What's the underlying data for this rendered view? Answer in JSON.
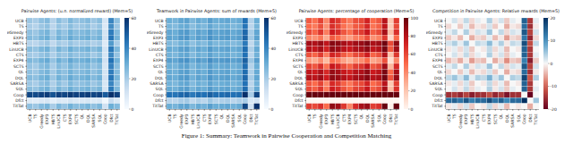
{
  "chart_data": [
    {
      "type": "heatmap",
      "title": "Pairwise Agents: (u.n. normalized reward) (Mem=5)",
      "color": "Blues",
      "x": [
        "UCB",
        "TS",
        "eGreedy",
        "EXP3",
        "HBTS",
        "LinUCB",
        "CTS",
        "EXP4",
        "SCTS",
        "QL",
        "DQL",
        "SARSA",
        "SQL",
        "Coop",
        "Dfct",
        "TitTat"
      ],
      "y": [
        "UCB",
        "TS",
        "eGreedy",
        "EXP3",
        "HBTS",
        "LinUCB",
        "CTS",
        "EXP4",
        "SCTS",
        "QL",
        "DQL",
        "SARSA",
        "SQL",
        "Coop",
        "Dfct",
        "TitTat"
      ],
      "cells": [
        [
          22,
          20,
          24,
          26,
          18,
          25,
          21,
          27,
          23,
          24,
          26,
          22,
          25,
          10,
          40,
          24
        ],
        [
          20,
          18,
          22,
          24,
          17,
          23,
          20,
          25,
          21,
          22,
          24,
          20,
          23,
          9,
          38,
          22
        ],
        [
          24,
          22,
          26,
          28,
          20,
          27,
          23,
          29,
          25,
          26,
          28,
          24,
          27,
          11,
          42,
          26
        ],
        [
          26,
          24,
          28,
          30,
          22,
          29,
          25,
          31,
          27,
          28,
          30,
          26,
          29,
          12,
          44,
          28
        ],
        [
          18,
          17,
          20,
          22,
          16,
          21,
          19,
          23,
          20,
          21,
          22,
          19,
          21,
          8,
          35,
          20
        ],
        [
          25,
          23,
          27,
          29,
          21,
          28,
          24,
          30,
          26,
          27,
          29,
          25,
          28,
          11,
          43,
          27
        ],
        [
          21,
          20,
          23,
          25,
          19,
          24,
          22,
          26,
          23,
          24,
          25,
          21,
          24,
          10,
          39,
          23
        ],
        [
          27,
          25,
          29,
          31,
          23,
          30,
          26,
          32,
          28,
          29,
          31,
          27,
          30,
          12,
          45,
          29
        ],
        [
          23,
          21,
          25,
          27,
          20,
          26,
          23,
          28,
          24,
          25,
          27,
          23,
          26,
          10,
          41,
          25
        ],
        [
          24,
          22,
          26,
          28,
          21,
          27,
          24,
          29,
          25,
          26,
          28,
          24,
          27,
          11,
          42,
          26
        ],
        [
          26,
          24,
          28,
          30,
          22,
          29,
          25,
          31,
          27,
          28,
          30,
          26,
          29,
          12,
          44,
          28
        ],
        [
          22,
          20,
          24,
          26,
          19,
          25,
          21,
          27,
          23,
          24,
          26,
          22,
          25,
          10,
          40,
          24
        ],
        [
          25,
          23,
          27,
          29,
          21,
          28,
          24,
          30,
          26,
          27,
          29,
          25,
          28,
          11,
          43,
          27
        ],
        [
          55,
          54,
          56,
          57,
          52,
          56,
          55,
          58,
          56,
          56,
          57,
          55,
          56,
          50,
          60,
          56
        ],
        [
          8,
          7,
          9,
          10,
          6,
          9,
          8,
          11,
          9,
          9,
          10,
          8,
          9,
          2,
          15,
          9
        ],
        [
          24,
          22,
          26,
          28,
          20,
          27,
          23,
          29,
          25,
          26,
          28,
          24,
          27,
          12,
          30,
          26
        ]
      ],
      "colorbar": {
        "range": [
          0,
          60
        ],
        "ticks": [
          0,
          20,
          40,
          60
        ]
      }
    },
    {
      "type": "heatmap",
      "title": "Teamwork in Pairwise Agents: sum of rewards (Mem=5)",
      "color": "Blues",
      "x": [
        "UCB",
        "TS",
        "eGreedy",
        "EXP3",
        "HBTS",
        "LinUCB",
        "CTS",
        "EXP4",
        "SCTS",
        "QL",
        "DQL",
        "SARSA",
        "SQL",
        "Coop",
        "Dfct",
        "TitTat"
      ],
      "y": [
        "UCB",
        "TS",
        "eGreedy",
        "EXP3",
        "HBTS",
        "LinUCB",
        "CTS",
        "EXP4",
        "SCTS",
        "QL",
        "DQL",
        "SARSA",
        "SQL",
        "Coop",
        "Dfct",
        "TitTat"
      ],
      "cells": [
        [
          30,
          28,
          32,
          33,
          27,
          31,
          29,
          34,
          30,
          31,
          32,
          29,
          31,
          45,
          18,
          30
        ],
        [
          28,
          26,
          30,
          31,
          25,
          29,
          27,
          32,
          28,
          29,
          30,
          27,
          29,
          44,
          17,
          28
        ],
        [
          32,
          30,
          34,
          35,
          29,
          33,
          31,
          36,
          32,
          33,
          34,
          31,
          33,
          47,
          20,
          32
        ],
        [
          33,
          31,
          35,
          36,
          30,
          34,
          32,
          37,
          33,
          34,
          35,
          32,
          34,
          48,
          21,
          33
        ],
        [
          27,
          25,
          29,
          30,
          24,
          28,
          26,
          31,
          27,
          28,
          29,
          26,
          28,
          43,
          16,
          27
        ],
        [
          31,
          29,
          33,
          34,
          28,
          32,
          30,
          35,
          31,
          32,
          33,
          30,
          32,
          46,
          19,
          31
        ],
        [
          29,
          27,
          31,
          32,
          26,
          30,
          28,
          33,
          29,
          30,
          31,
          28,
          30,
          45,
          17,
          29
        ],
        [
          34,
          32,
          36,
          37,
          31,
          35,
          33,
          38,
          34,
          35,
          36,
          33,
          35,
          49,
          22,
          34
        ],
        [
          30,
          28,
          32,
          33,
          27,
          31,
          29,
          34,
          30,
          31,
          32,
          29,
          31,
          46,
          18,
          30
        ],
        [
          31,
          29,
          33,
          34,
          28,
          32,
          30,
          35,
          31,
          32,
          33,
          30,
          32,
          46,
          19,
          31
        ],
        [
          32,
          30,
          34,
          35,
          29,
          33,
          31,
          36,
          32,
          33,
          34,
          31,
          33,
          47,
          20,
          32
        ],
        [
          29,
          27,
          31,
          32,
          26,
          30,
          28,
          33,
          29,
          30,
          31,
          28,
          30,
          45,
          17,
          29
        ],
        [
          31,
          29,
          33,
          34,
          28,
          32,
          30,
          35,
          31,
          32,
          33,
          30,
          32,
          46,
          19,
          31
        ],
        [
          45,
          44,
          47,
          48,
          43,
          46,
          45,
          49,
          46,
          46,
          47,
          45,
          46,
          60,
          20,
          55
        ],
        [
          18,
          17,
          20,
          21,
          16,
          19,
          17,
          22,
          18,
          19,
          20,
          17,
          19,
          20,
          10,
          12
        ],
        [
          30,
          28,
          32,
          33,
          27,
          31,
          29,
          34,
          30,
          31,
          32,
          29,
          31,
          55,
          12,
          60
        ]
      ],
      "colorbar": {
        "range": [
          0,
          60
        ],
        "ticks": [
          0,
          20,
          40,
          60
        ]
      }
    },
    {
      "type": "heatmap",
      "title": "Pairwise Agents: percentage of cooperation (Mem=5)",
      "color": "Reds",
      "x": [
        "UCB",
        "TS",
        "eGreedy",
        "EXP3",
        "HBTS",
        "LinUCB",
        "CTS",
        "EXP4",
        "SCTS",
        "QL",
        "DQL",
        "SARSA",
        "SQL",
        "Coop",
        "Dfct",
        "TitTat"
      ],
      "y": [
        "UCB",
        "TS",
        "eGreedy",
        "EXP3",
        "HBTS",
        "LinUCB",
        "CTS",
        "EXP4",
        "SCTS",
        "QL",
        "DQL",
        "SARSA",
        "SQL",
        "Coop",
        "Dfct",
        "TitTat"
      ],
      "cells": [
        [
          55,
          48,
          62,
          40,
          70,
          65,
          52,
          45,
          58,
          60,
          72,
          50,
          56,
          80,
          20,
          64
        ],
        [
          50,
          45,
          58,
          38,
          68,
          62,
          48,
          42,
          55,
          57,
          70,
          47,
          53,
          78,
          18,
          60
        ],
        [
          60,
          52,
          66,
          44,
          74,
          69,
          56,
          49,
          62,
          64,
          76,
          54,
          60,
          84,
          24,
          68
        ],
        [
          42,
          38,
          46,
          30,
          55,
          50,
          40,
          34,
          44,
          46,
          58,
          38,
          43,
          65,
          12,
          50
        ],
        [
          85,
          82,
          88,
          78,
          92,
          90,
          84,
          80,
          86,
          88,
          94,
          83,
          86,
          98,
          60,
          90
        ],
        [
          80,
          77,
          84,
          72,
          89,
          86,
          79,
          75,
          82,
          84,
          90,
          78,
          81,
          96,
          55,
          86
        ],
        [
          58,
          52,
          64,
          44,
          72,
          67,
          55,
          48,
          60,
          62,
          74,
          52,
          58,
          82,
          22,
          66
        ],
        [
          35,
          30,
          40,
          25,
          48,
          44,
          33,
          28,
          37,
          39,
          50,
          31,
          36,
          58,
          10,
          42
        ],
        [
          62,
          56,
          68,
          48,
          76,
          71,
          59,
          52,
          64,
          66,
          78,
          56,
          62,
          86,
          26,
          70
        ],
        [
          78,
          74,
          82,
          70,
          88,
          84,
          76,
          72,
          80,
          82,
          90,
          75,
          79,
          95,
          50,
          84
        ],
        [
          82,
          79,
          86,
          74,
          90,
          87,
          81,
          77,
          84,
          86,
          92,
          80,
          83,
          97,
          56,
          88
        ],
        [
          56,
          50,
          62,
          42,
          70,
          65,
          53,
          46,
          58,
          60,
          72,
          50,
          56,
          80,
          20,
          64
        ],
        [
          60,
          54,
          66,
          46,
          74,
          69,
          57,
          50,
          62,
          64,
          76,
          54,
          60,
          84,
          24,
          68
        ],
        [
          100,
          100,
          100,
          100,
          100,
          100,
          100,
          100,
          100,
          100,
          100,
          100,
          100,
          100,
          100,
          100
        ],
        [
          0,
          0,
          0,
          0,
          0,
          0,
          0,
          0,
          0,
          0,
          0,
          0,
          0,
          0,
          0,
          0
        ],
        [
          64,
          60,
          68,
          50,
          90,
          86,
          66,
          42,
          70,
          84,
          88,
          64,
          68,
          100,
          2,
          100
        ]
      ],
      "colorbar": {
        "range": [
          0,
          100
        ],
        "ticks": [
          0,
          20,
          40,
          60,
          80,
          100
        ]
      }
    },
    {
      "type": "heatmap",
      "title": "Competition in Pairwise Agents: Relative rewards (Mem=5)",
      "color": "RdBu",
      "x": [
        "UCB",
        "TS",
        "eGreedy",
        "EXP3",
        "HBTS",
        "LinUCB",
        "CTS",
        "EXP4",
        "SCTS",
        "QL",
        "DQL",
        "SARSA",
        "SQL",
        "Coop",
        "Dfct",
        "TitTat"
      ],
      "y": [
        "UCB",
        "TS",
        "eGreedy",
        "EXP3",
        "HBTS",
        "LinUCB",
        "CTS",
        "EXP4",
        "SCTS",
        "QL",
        "DQL",
        "SARSA",
        "SQL",
        "Coop",
        "Dfct",
        "TitTat"
      ],
      "cells": [
        [
          0,
          2,
          -1,
          3,
          -2,
          1,
          0,
          4,
          -1,
          2,
          -3,
          1,
          0,
          15,
          -14,
          1
        ],
        [
          -2,
          0,
          -3,
          1,
          -4,
          -1,
          -2,
          2,
          -3,
          0,
          -5,
          -1,
          -2,
          14,
          -15,
          -1
        ],
        [
          1,
          3,
          0,
          4,
          -1,
          2,
          1,
          5,
          0,
          3,
          -2,
          2,
          1,
          16,
          -13,
          2
        ],
        [
          -3,
          -1,
          -4,
          0,
          -5,
          -2,
          -3,
          1,
          -4,
          -1,
          -6,
          -2,
          -3,
          13,
          -16,
          -2
        ],
        [
          2,
          4,
          1,
          5,
          0,
          3,
          2,
          6,
          1,
          4,
          -1,
          3,
          2,
          17,
          -12,
          3
        ],
        [
          -1,
          1,
          -2,
          2,
          -3,
          0,
          -1,
          3,
          -2,
          1,
          -4,
          0,
          -1,
          15,
          -14,
          0
        ],
        [
          0,
          2,
          -1,
          3,
          -2,
          1,
          0,
          4,
          -1,
          2,
          -3,
          1,
          0,
          15,
          -14,
          1
        ],
        [
          -4,
          -2,
          -5,
          -1,
          -6,
          -3,
          -4,
          0,
          -5,
          -2,
          -7,
          -3,
          -4,
          12,
          -17,
          -3
        ],
        [
          1,
          3,
          0,
          4,
          -1,
          2,
          1,
          5,
          0,
          3,
          -2,
          2,
          1,
          16,
          -13,
          2
        ],
        [
          -2,
          0,
          -3,
          1,
          -4,
          -1,
          -2,
          2,
          -3,
          0,
          -5,
          -1,
          -2,
          14,
          -15,
          -1
        ],
        [
          3,
          5,
          2,
          6,
          1,
          4,
          3,
          7,
          2,
          5,
          0,
          4,
          3,
          18,
          -11,
          4
        ],
        [
          -1,
          1,
          -2,
          2,
          -3,
          0,
          -1,
          3,
          -2,
          1,
          -4,
          0,
          -1,
          15,
          -14,
          0
        ],
        [
          0,
          2,
          -1,
          3,
          -2,
          1,
          0,
          4,
          -1,
          2,
          -3,
          1,
          0,
          15,
          -14,
          1
        ],
        [
          -15,
          -14,
          -16,
          -13,
          -17,
          -15,
          -15,
          -12,
          -16,
          -14,
          -18,
          -15,
          -15,
          0,
          -20,
          0
        ],
        [
          14,
          15,
          13,
          16,
          12,
          14,
          14,
          17,
          13,
          15,
          11,
          14,
          14,
          20,
          0,
          5
        ],
        [
          -1,
          1,
          -2,
          2,
          -3,
          0,
          -1,
          3,
          -2,
          1,
          -4,
          0,
          -1,
          0,
          -5,
          0
        ]
      ],
      "colorbar": {
        "range": [
          -20,
          20
        ],
        "ticks": [
          -20,
          -10,
          0,
          10,
          20
        ]
      }
    }
  ],
  "caption": "Figure 1: Summary: Teamwork in Pairwise Cooperation and Competition Matching"
}
